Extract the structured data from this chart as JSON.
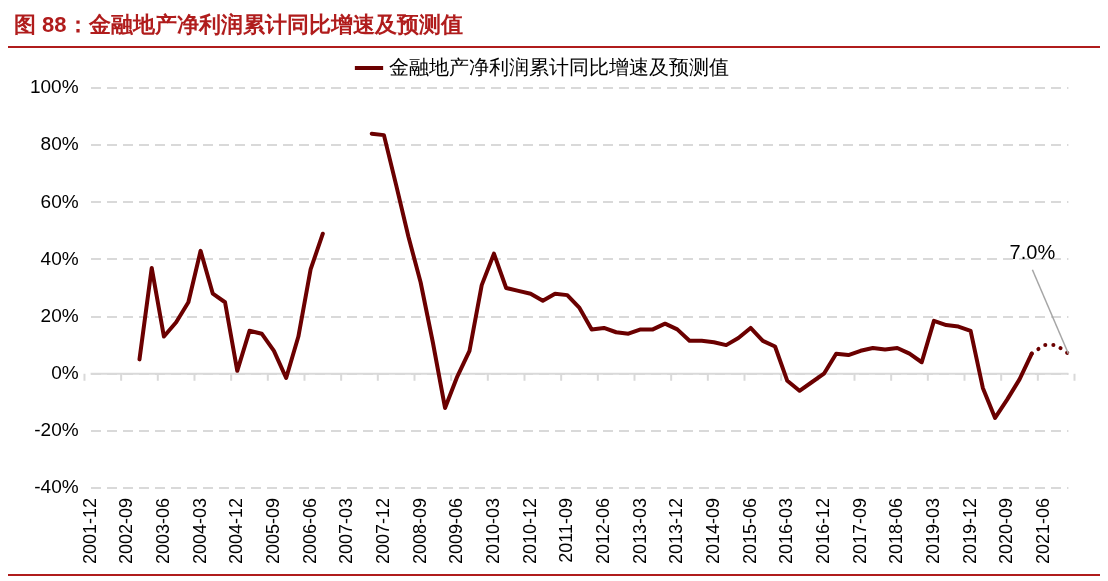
{
  "chart_data": {
    "type": "line",
    "title": "图 88：金融地产净利润累计同比增速及预测值",
    "categories": [
      "2001-12",
      null,
      null,
      "2002-09",
      null,
      null,
      "2003-06",
      null,
      null,
      "2004-03",
      null,
      null,
      "2004-12",
      null,
      null,
      "2005-09",
      null,
      null,
      "2006-06",
      null,
      null,
      "2007-03",
      null,
      null,
      "2007-12",
      null,
      null,
      "2008-09",
      null,
      null,
      "2009-06",
      null,
      null,
      "2010-03",
      null,
      null,
      "2010-12",
      null,
      null,
      "2011-09",
      null,
      null,
      "2012-06",
      null,
      null,
      "2013-03",
      null,
      null,
      "2013-12",
      null,
      null,
      "2014-09",
      null,
      null,
      "2015-06",
      null,
      null,
      "2016-03",
      null,
      null,
      "2016-12",
      null,
      null,
      "2017-09",
      null,
      null,
      "2018-06",
      null,
      null,
      "2019-03",
      null,
      null,
      "2019-12",
      null,
      null,
      "2020-09",
      null,
      null,
      "2021-06",
      null,
      null
    ],
    "series": [
      {
        "name": "金融地产净利润累计同比增速及预测值",
        "color": "#6b0000",
        "line_style": "solid",
        "values": [
          null,
          null,
          null,
          null,
          5,
          37,
          13,
          18,
          25,
          43,
          28,
          25,
          1,
          15,
          14,
          8,
          -1.5,
          13,
          36.5,
          49,
          null,
          null,
          null,
          84,
          83.5,
          66,
          48,
          32,
          11,
          -12,
          -1,
          8,
          31,
          42,
          30,
          29,
          28,
          25.5,
          28,
          27.5,
          23,
          15.5,
          16,
          14.5,
          14,
          15.5,
          15.5,
          17.5,
          15.5,
          11.5,
          11.5,
          11,
          10,
          12.5,
          16,
          11.5,
          9.5,
          -2.5,
          -6,
          -3,
          0,
          7,
          6.5,
          8,
          9,
          8.5,
          9,
          7,
          4,
          18.5,
          17,
          16.5,
          15,
          -5,
          -15.5,
          -9,
          -2,
          7,
          null,
          null,
          null
        ]
      },
      {
        "color": "#6b0000",
        "line_style": "dotted",
        "values": [
          null,
          null,
          null,
          null,
          null,
          null,
          null,
          null,
          null,
          null,
          null,
          null,
          null,
          null,
          null,
          null,
          null,
          null,
          null,
          null,
          null,
          null,
          null,
          null,
          null,
          null,
          null,
          null,
          null,
          null,
          null,
          null,
          null,
          null,
          null,
          null,
          null,
          null,
          null,
          null,
          null,
          null,
          null,
          null,
          null,
          null,
          null,
          null,
          null,
          null,
          null,
          null,
          null,
          null,
          null,
          null,
          null,
          null,
          null,
          null,
          null,
          null,
          null,
          null,
          null,
          null,
          null,
          null,
          null,
          null,
          null,
          null,
          null,
          null,
          null,
          null,
          null,
          7,
          10,
          10,
          7.0
        ],
        "value_labels": [
          null,
          null,
          null,
          null,
          null,
          null,
          null,
          null,
          null,
          null,
          null,
          null,
          null,
          null,
          null,
          null,
          null,
          null,
          null,
          null,
          null,
          null,
          null,
          null,
          null,
          null,
          null,
          null,
          null,
          null,
          null,
          null,
          null,
          null,
          null,
          null,
          null,
          null,
          null,
          null,
          null,
          null,
          null,
          null,
          null,
          null,
          null,
          null,
          null,
          null,
          null,
          null,
          null,
          null,
          null,
          null,
          null,
          null,
          null,
          null,
          null,
          null,
          null,
          null,
          null,
          null,
          null,
          null,
          null,
          null,
          null,
          null,
          null,
          null,
          null,
          null,
          null,
          null,
          null,
          null,
          "7.0%"
        ]
      }
    ],
    "ylim": [
      -40,
      100
    ],
    "yticks": [
      {
        "value": -40,
        "label": "-40%"
      },
      {
        "value": -20,
        "label": "-20%"
      },
      {
        "value": 0,
        "label": "0%"
      },
      {
        "value": 20,
        "label": "20%"
      },
      {
        "value": 40,
        "label": "40%"
      },
      {
        "value": 60,
        "label": "60%"
      },
      {
        "value": 80,
        "label": "80%"
      },
      {
        "value": 100,
        "label": "100%"
      }
    ],
    "grid": "y",
    "legend": "top",
    "marker": "none"
  }
}
